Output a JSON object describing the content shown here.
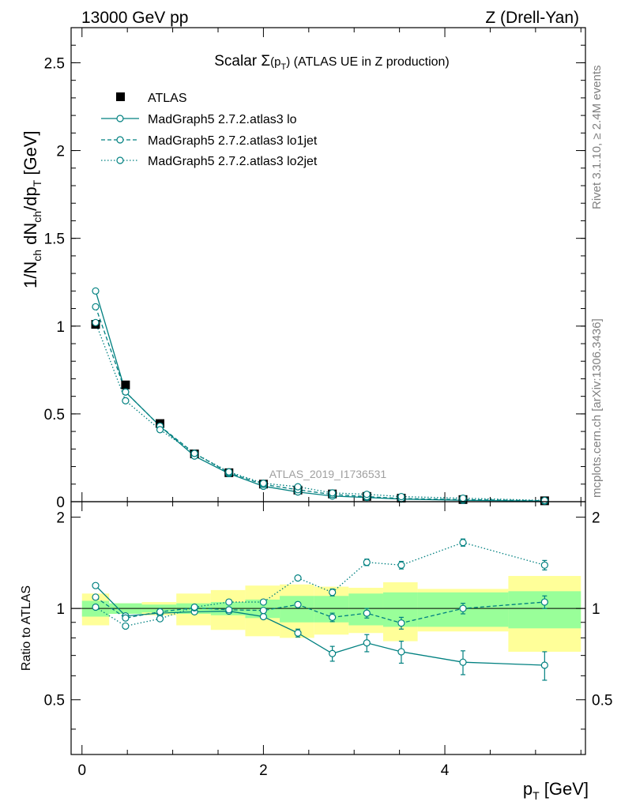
{
  "header": {
    "left": "13000 GeV pp",
    "right": "Z (Drell-Yan)"
  },
  "side_labels": {
    "rivet": "Rivet 3.1.10, ≥ 2.4M events",
    "source": "mcplots.cern.ch [arXiv:1306.3436]"
  },
  "chart_data": [
    {
      "type": "line",
      "panel": "main",
      "title": "Scalar Σ(pT) (ATLAS UE in Z production)",
      "title_parts": {
        "prefix": "Scalar ",
        "sigma": "Σ",
        "paren_open": "(p",
        "sub": "T",
        "paren_close": ")",
        "suffix": " (ATLAS UE in Z production)"
      },
      "watermark": "ATLAS_2019_I1736531",
      "ylabel": "1/Nch dNch/dpT [GeV]",
      "ylabel_parts": {
        "a": "1/N",
        "s1": "ch",
        "b": " dN",
        "s2": "ch",
        "c": "/dp",
        "s3": "T",
        "d": " [GeV]"
      },
      "xlim": [
        -0.12,
        5.55
      ],
      "ylim": [
        0,
        2.7
      ],
      "y_ticks": [
        0,
        0.5,
        1,
        1.5,
        2,
        2.5
      ],
      "y_tick_labels": [
        "0",
        "0.5",
        "1",
        "1.5",
        "2",
        "2.5"
      ],
      "legend": [
        "ATLAS",
        "MadGraph5 2.7.2.atlas3 lo",
        "MadGraph5 2.7.2.atlas3 lo1jet",
        "MadGraph5 2.7.2.atlas3 lo2jet"
      ],
      "x": [
        0.15,
        0.48,
        0.86,
        1.24,
        1.62,
        2.0,
        2.38,
        2.76,
        3.14,
        3.52,
        4.2,
        5.1
      ],
      "series": [
        {
          "name": "ATLAS",
          "style": "square",
          "values": [
            1.01,
            0.665,
            0.445,
            0.272,
            0.165,
            0.1,
            0.066,
            0.044,
            0.03,
            0.02,
            0.012,
            0.005
          ]
        },
        {
          "name": "MadGraph5 2.7.2.atlas3 lo",
          "style": "solid",
          "values": [
            1.2,
            0.625,
            0.43,
            0.26,
            0.16,
            0.088,
            0.055,
            0.032,
            0.024,
            0.015,
            0.008,
            0.0033
          ]
        },
        {
          "name": "MadGraph5 2.7.2.atlas3 lo1jet",
          "style": "dashed",
          "values": [
            1.11,
            0.625,
            0.43,
            0.275,
            0.165,
            0.098,
            0.068,
            0.041,
            0.029,
            0.018,
            0.012,
            0.0054
          ]
        },
        {
          "name": "MadGraph5 2.7.2.atlas3 lo2jet",
          "style": "dotted",
          "values": [
            1.02,
            0.575,
            0.41,
            0.275,
            0.17,
            0.105,
            0.085,
            0.05,
            0.042,
            0.029,
            0.02,
            0.007
          ]
        }
      ]
    },
    {
      "type": "line",
      "panel": "ratio",
      "ylabel": "Ratio to ATLAS",
      "xlabel": "pT [GeV]",
      "xlabel_parts": {
        "a": "p",
        "sub": "T",
        "b": " [GeV]"
      },
      "xlim": [
        -0.12,
        5.55
      ],
      "ylim": [
        0.33,
        2.25
      ],
      "y_ticks": [
        0.5,
        1,
        2
      ],
      "y_tick_labels": [
        "0.5",
        "1",
        "2"
      ],
      "x_ticks": [
        0,
        2,
        4
      ],
      "x_tick_labels": [
        "0",
        "2",
        "4"
      ],
      "bands": {
        "edges": [
          0,
          0.3,
          0.66,
          1.04,
          1.42,
          1.8,
          2.18,
          2.56,
          2.94,
          3.32,
          3.7,
          4.7,
          5.5
        ],
        "inner_lo": [
          0.94,
          0.96,
          0.97,
          0.96,
          0.95,
          0.93,
          0.9,
          0.9,
          0.88,
          0.87,
          0.87,
          0.86
        ],
        "inner_hi": [
          1.06,
          1.04,
          1.03,
          1.04,
          1.05,
          1.07,
          1.1,
          1.1,
          1.12,
          1.13,
          1.13,
          1.14
        ],
        "outer_lo": [
          0.88,
          0.96,
          0.95,
          0.88,
          0.85,
          0.81,
          0.8,
          0.82,
          0.83,
          0.78,
          0.84,
          0.72
        ],
        "outer_hi": [
          1.12,
          1.04,
          1.05,
          1.12,
          1.15,
          1.19,
          1.2,
          1.18,
          1.17,
          1.22,
          1.16,
          1.28
        ]
      },
      "x": [
        0.15,
        0.48,
        0.86,
        1.24,
        1.62,
        2.0,
        2.38,
        2.76,
        3.14,
        3.52,
        4.2,
        5.1
      ],
      "series": [
        {
          "name": "MadGraph5 2.7.2.atlas3 lo",
          "style": "solid",
          "values": [
            1.19,
            0.945,
            0.965,
            0.975,
            0.98,
            0.94,
            0.83,
            0.71,
            0.77,
            0.72,
            0.665,
            0.65
          ],
          "errors": [
            0.01,
            0.01,
            0.01,
            0.01,
            0.01,
            0.015,
            0.025,
            0.04,
            0.05,
            0.06,
            0.06,
            0.07
          ]
        },
        {
          "name": "MadGraph5 2.7.2.atlas3 lo1jet",
          "style": "dashed",
          "values": [
            1.09,
            0.93,
            0.975,
            1.005,
            0.99,
            0.985,
            1.03,
            0.935,
            0.965,
            0.895,
            1.0,
            1.05
          ],
          "errors": [
            0.01,
            0.01,
            0.01,
            0.01,
            0.01,
            0.015,
            0.02,
            0.03,
            0.035,
            0.04,
            0.04,
            0.05
          ]
        },
        {
          "name": "MadGraph5 2.7.2.atlas3 lo2jet",
          "style": "dotted",
          "values": [
            1.01,
            0.875,
            0.925,
            1.01,
            1.05,
            1.05,
            1.26,
            1.13,
            1.42,
            1.39,
            1.65,
            1.39
          ],
          "errors": [
            0.01,
            0.01,
            0.01,
            0.01,
            0.01,
            0.015,
            0.02,
            0.03,
            0.035,
            0.04,
            0.045,
            0.05
          ]
        }
      ]
    }
  ]
}
